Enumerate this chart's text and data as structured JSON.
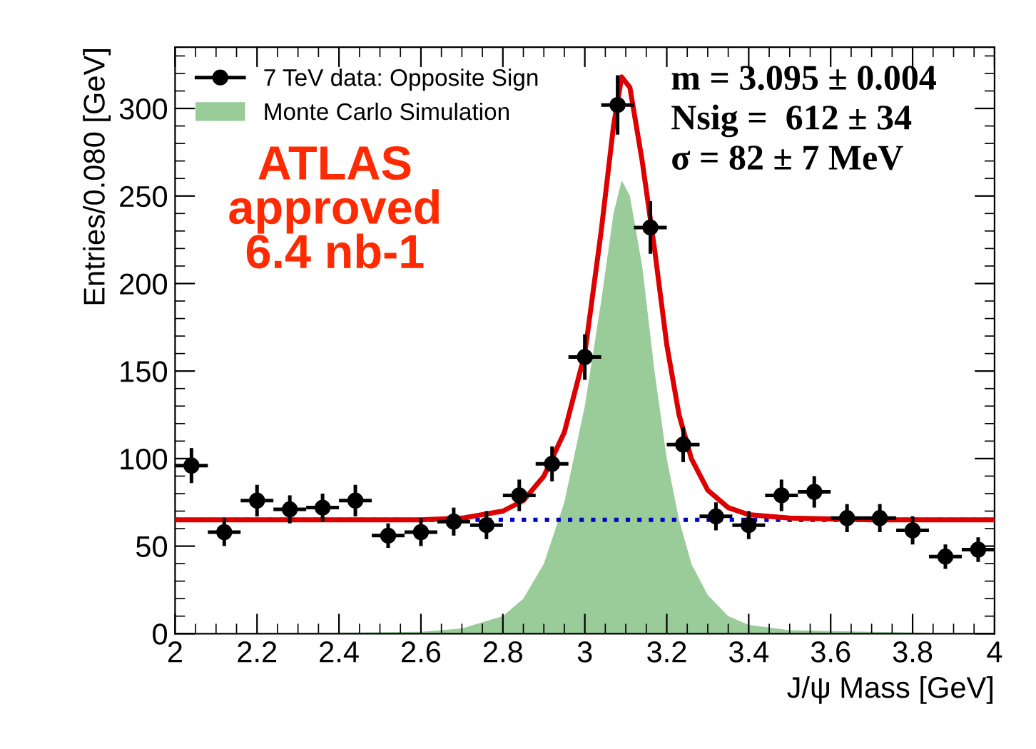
{
  "chart_data": {
    "type": "scatter",
    "xlabel": "J/ψ Mass [GeV]",
    "ylabel": "Entries/0.080 [GeV]",
    "xlim": [
      2,
      4
    ],
    "ylim": [
      0,
      335
    ],
    "xticks": [
      2,
      2.2,
      2.4,
      2.6,
      2.8,
      3,
      3.2,
      3.4,
      3.6,
      3.8,
      4
    ],
    "yticks": [
      0,
      50,
      100,
      150,
      200,
      250,
      300
    ],
    "legend": "top left",
    "grid": false,
    "series": [
      {
        "type": "area",
        "name": "Monte Carlo Simulation",
        "color": "#99cc99",
        "x": [
          2.0,
          2.6,
          2.7,
          2.8,
          2.85,
          2.9,
          2.95,
          3.0,
          3.04,
          3.07,
          3.09,
          3.11,
          3.14,
          3.17,
          3.2,
          3.23,
          3.26,
          3.3,
          3.35,
          3.4,
          3.5,
          3.7,
          4.0
        ],
        "values": [
          0,
          1,
          3,
          10,
          20,
          40,
          75,
          130,
          190,
          240,
          259,
          250,
          210,
          150,
          100,
          65,
          40,
          22,
          10,
          5,
          2,
          1,
          0
        ]
      },
      {
        "type": "line",
        "color": "#dd0000",
        "line_style": "solid",
        "x": [
          2.0,
          2.6,
          2.7,
          2.8,
          2.85,
          2.9,
          2.95,
          3.0,
          3.04,
          3.07,
          3.09,
          3.11,
          3.14,
          3.17,
          3.2,
          3.23,
          3.26,
          3.3,
          3.35,
          3.4,
          3.5,
          3.7,
          4.0
        ],
        "values": [
          65,
          65,
          66,
          70,
          76,
          90,
          115,
          160,
          230,
          290,
          318,
          312,
          270,
          220,
          165,
          125,
          100,
          82,
          72,
          68,
          66,
          65,
          65
        ]
      },
      {
        "name": "7 TeV data: Opposite Sign",
        "color": "#000000",
        "marker": "circle",
        "x": [
          2.04,
          2.12,
          2.2,
          2.28,
          2.36,
          2.44,
          2.52,
          2.6,
          2.68,
          2.76,
          2.84,
          2.92,
          3.0,
          3.08,
          3.16,
          3.24,
          3.32,
          3.4,
          3.48,
          3.56,
          3.64,
          3.72,
          3.8,
          3.88,
          3.96
        ],
        "values": [
          96,
          58,
          76,
          71,
          72,
          76,
          56,
          58,
          64,
          62,
          79,
          97,
          158,
          302,
          232,
          108,
          67,
          62,
          79,
          81,
          66,
          66,
          59,
          44,
          48
        ],
        "errors": [
          10,
          8,
          9,
          8,
          8,
          9,
          7,
          8,
          8,
          8,
          9,
          10,
          13,
          17,
          15,
          10,
          8,
          8,
          9,
          9,
          8,
          8,
          8,
          7,
          7
        ],
        "xerrors": [
          0.04,
          0.04,
          0.04,
          0.04,
          0.04,
          0.04,
          0.04,
          0.04,
          0.04,
          0.04,
          0.04,
          0.04,
          0.04,
          0.04,
          0.04,
          0.04,
          0.04,
          0.04,
          0.04,
          0.04,
          0.04,
          0.04,
          0.04,
          0.04,
          0.04
        ]
      }
    ],
    "ref_lines": [
      {
        "axis": "y",
        "value": 65,
        "color": "#0000cc",
        "line_style": "dotted"
      }
    ],
    "annotations": [
      "ATLAS\napproved\n6.4 nb-1",
      "m = 3.095 ± 0.004\nNsig =  612 ± 34\nσ = 82 ± 7 MeV"
    ]
  }
}
